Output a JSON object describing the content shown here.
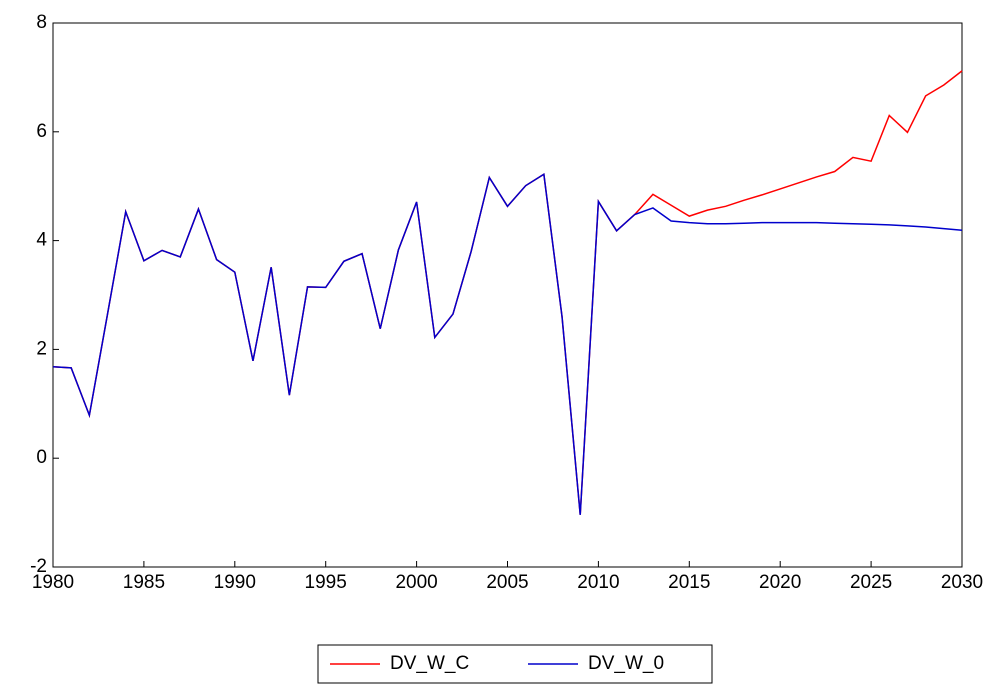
{
  "chart_data": {
    "type": "line",
    "x": [
      1980,
      1981,
      1982,
      1983,
      1984,
      1985,
      1986,
      1987,
      1988,
      1989,
      1990,
      1991,
      1992,
      1993,
      1994,
      1995,
      1996,
      1997,
      1998,
      1999,
      2000,
      2001,
      2002,
      2003,
      2004,
      2005,
      2006,
      2007,
      2008,
      2009,
      2010,
      2011,
      2012,
      2013,
      2014,
      2015,
      2016,
      2017,
      2018,
      2019,
      2020,
      2021,
      2022,
      2023,
      2024,
      2025,
      2026,
      2027,
      2028,
      2029,
      2030
    ],
    "series": [
      {
        "name": "DV_W_C",
        "color": "#ff0000",
        "values": [
          1.68,
          1.66,
          0.79,
          2.65,
          4.53,
          3.63,
          3.82,
          3.7,
          4.58,
          3.65,
          3.42,
          1.79,
          3.51,
          1.16,
          3.15,
          3.14,
          3.62,
          3.76,
          2.38,
          3.83,
          4.71,
          2.22,
          2.65,
          3.8,
          5.16,
          4.63,
          5.01,
          5.22,
          2.6,
          -1.04,
          4.72,
          4.18,
          4.48,
          4.85,
          4.65,
          4.45,
          4.56,
          4.63,
          4.74,
          4.84,
          4.95,
          5.06,
          5.17,
          5.27,
          5.53,
          5.46,
          6.3,
          5.99,
          6.66,
          6.86,
          7.12
        ]
      },
      {
        "name": "DV_W_0",
        "color": "#0000cc",
        "values": [
          1.68,
          1.66,
          0.79,
          2.65,
          4.53,
          3.63,
          3.82,
          3.7,
          4.58,
          3.65,
          3.42,
          1.79,
          3.51,
          1.16,
          3.15,
          3.14,
          3.62,
          3.76,
          2.38,
          3.83,
          4.71,
          2.22,
          2.65,
          3.8,
          5.16,
          4.63,
          5.01,
          5.22,
          2.6,
          -1.04,
          4.72,
          4.18,
          4.48,
          4.6,
          4.36,
          4.33,
          4.31,
          4.31,
          4.32,
          4.33,
          4.33,
          4.33,
          4.33,
          4.32,
          4.31,
          4.3,
          4.29,
          4.27,
          4.25,
          4.22,
          4.19
        ]
      }
    ],
    "xlim": [
      1980,
      2030
    ],
    "xticks": [
      1980,
      1985,
      1990,
      1995,
      2000,
      2005,
      2010,
      2015,
      2020,
      2025,
      2030
    ],
    "ylim": [
      -2,
      8
    ],
    "yticks": [
      -2,
      0,
      2,
      4,
      6,
      8
    ]
  }
}
